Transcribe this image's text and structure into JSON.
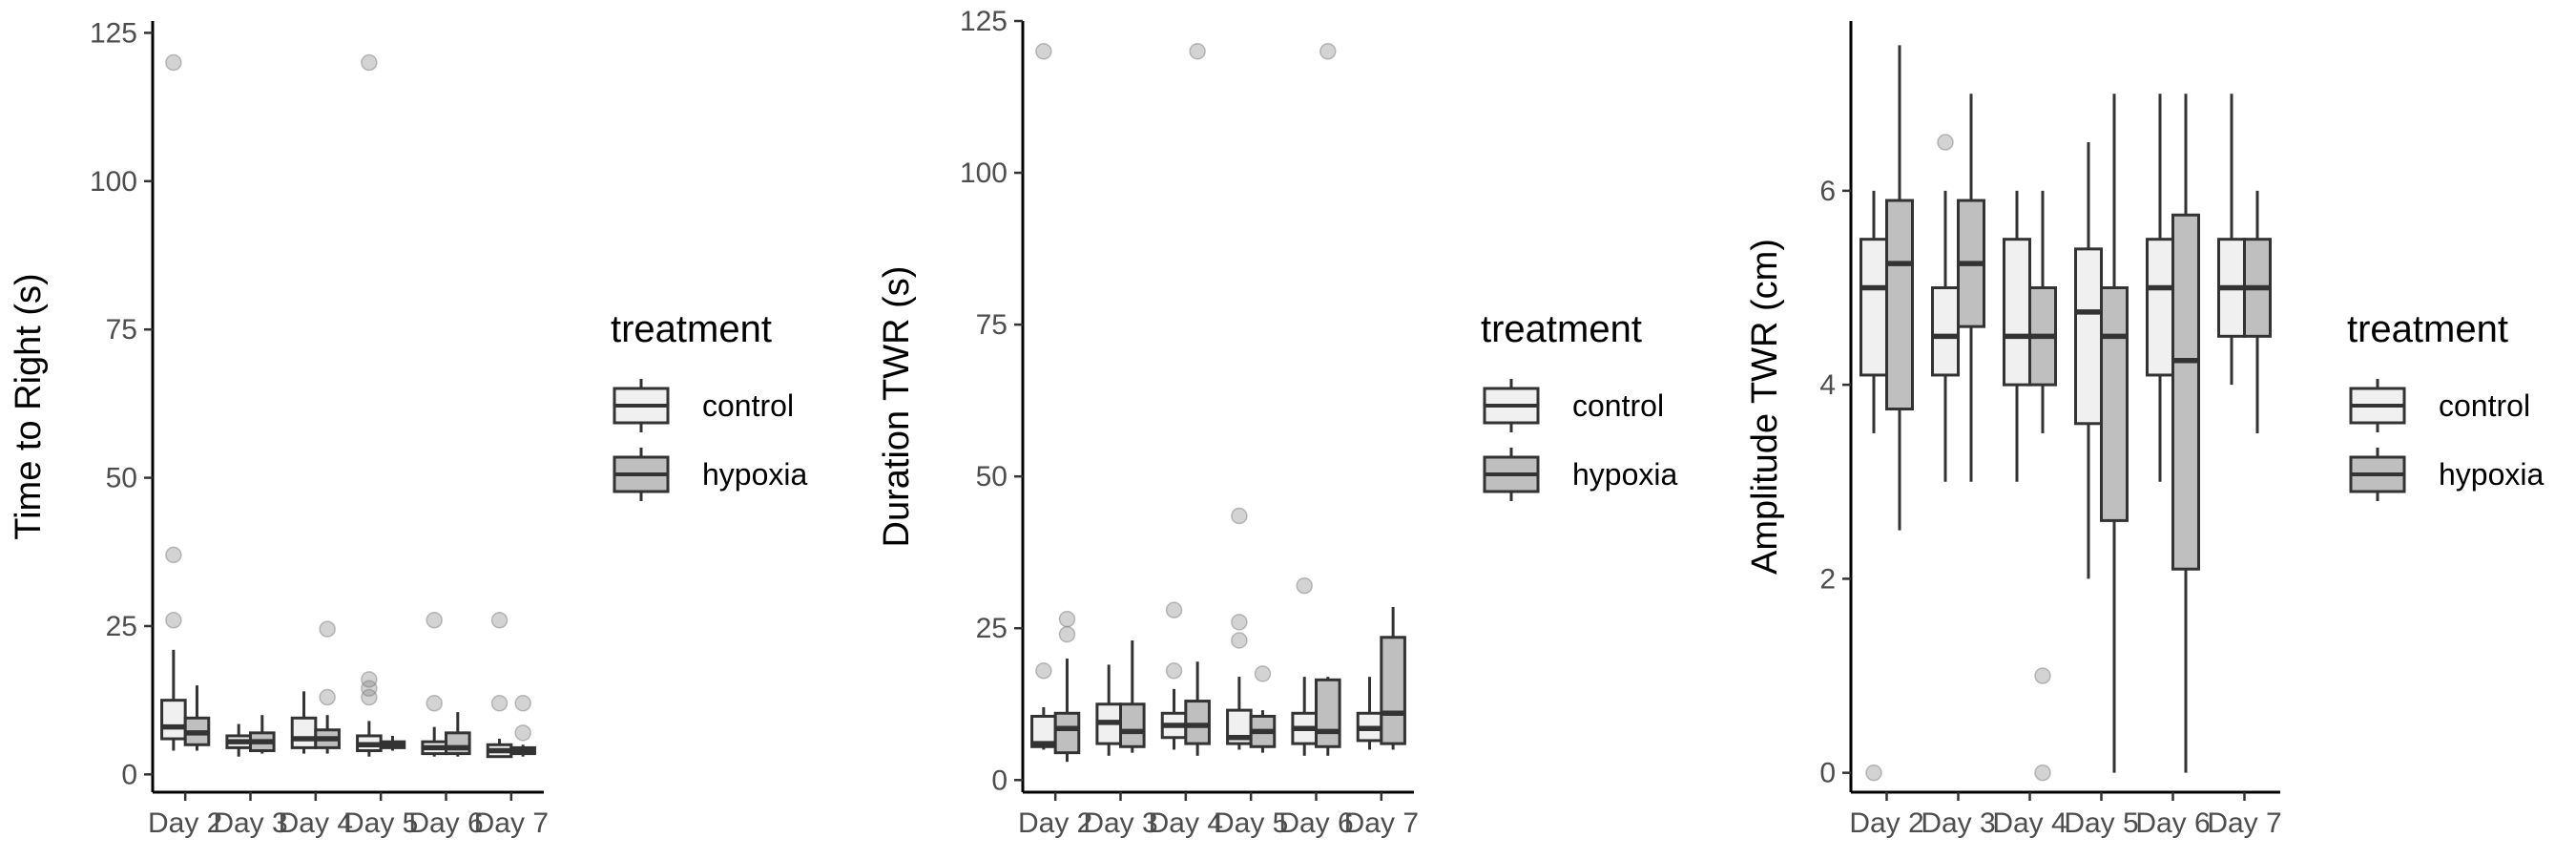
{
  "colors": {
    "control": "#f0f0f0",
    "hypoxia": "#bfbfbf",
    "stroke": "#333333",
    "outlier": "#9a9a9a"
  },
  "legend": {
    "title": "treatment",
    "labels": [
      "control",
      "hypoxia"
    ]
  },
  "chart_data": [
    {
      "type": "boxplot",
      "ylabel": "Time to Right (s)",
      "ylim": [
        -3,
        127
      ],
      "yticks": [
        0,
        25,
        50,
        75,
        100,
        125
      ],
      "categories": [
        "Day 2",
        "Day 3",
        "Day 4",
        "Day 5",
        "Day 6",
        "Day 7"
      ],
      "series": [
        {
          "name": "control",
          "boxes": [
            {
              "whisker_low": 4,
              "q1": 6,
              "median": 8,
              "q3": 12.5,
              "whisker_high": 21,
              "outliers": [
                26,
                37,
                120
              ]
            },
            {
              "whisker_low": 3,
              "q1": 4.5,
              "median": 5.5,
              "q3": 6.5,
              "whisker_high": 8.5,
              "outliers": []
            },
            {
              "whisker_low": 3.5,
              "q1": 4.5,
              "median": 6,
              "q3": 9.5,
              "whisker_high": 14,
              "outliers": []
            },
            {
              "whisker_low": 3,
              "q1": 4,
              "median": 5,
              "q3": 6.5,
              "whisker_high": 9,
              "outliers": [
                13,
                14.5,
                16,
                120
              ]
            },
            {
              "whisker_low": 3,
              "q1": 3.5,
              "median": 4.5,
              "q3": 5.5,
              "whisker_high": 8,
              "outliers": [
                12,
                26
              ]
            },
            {
              "whisker_low": 3,
              "q1": 3,
              "median": 4,
              "q3": 5,
              "whisker_high": 6,
              "outliers": [
                12,
                26
              ]
            }
          ]
        },
        {
          "name": "hypoxia",
          "boxes": [
            {
              "whisker_low": 4,
              "q1": 5,
              "median": 7,
              "q3": 9.5,
              "whisker_high": 15,
              "outliers": []
            },
            {
              "whisker_low": 3.5,
              "q1": 4,
              "median": 5.5,
              "q3": 7,
              "whisker_high": 10,
              "outliers": []
            },
            {
              "whisker_low": 3.5,
              "q1": 4.5,
              "median": 6,
              "q3": 7.5,
              "whisker_high": 10,
              "outliers": [
                13,
                24.5
              ]
            },
            {
              "whisker_low": 4,
              "q1": 4.5,
              "median": 5,
              "q3": 5.5,
              "whisker_high": 6.5,
              "outliers": []
            },
            {
              "whisker_low": 3,
              "q1": 3.5,
              "median": 4.5,
              "q3": 7,
              "whisker_high": 10.5,
              "outliers": []
            },
            {
              "whisker_low": 3,
              "q1": 3.5,
              "median": 4,
              "q3": 4.5,
              "whisker_high": 5,
              "outliers": [
                7,
                12
              ]
            }
          ]
        }
      ]
    },
    {
      "type": "boxplot",
      "ylabel": "Duration TWR (s)",
      "ylim": [
        -2,
        125
      ],
      "yticks": [
        0,
        25,
        50,
        75,
        100,
        125
      ],
      "categories": [
        "Day 2",
        "Day 3",
        "Day 4",
        "Day 5",
        "Day 6",
        "Day 7"
      ],
      "series": [
        {
          "name": "control",
          "boxes": [
            {
              "whisker_low": 5,
              "q1": 5.5,
              "median": 6,
              "q3": 10.5,
              "whisker_high": 12,
              "outliers": [
                18,
                120
              ]
            },
            {
              "whisker_low": 4,
              "q1": 6,
              "median": 9.5,
              "q3": 12.5,
              "whisker_high": 19,
              "outliers": []
            },
            {
              "whisker_low": 5,
              "q1": 7,
              "median": 9,
              "q3": 11,
              "whisker_high": 15,
              "outliers": [
                18,
                28
              ]
            },
            {
              "whisker_low": 5,
              "q1": 6,
              "median": 7,
              "q3": 11.5,
              "whisker_high": 17,
              "outliers": [
                23,
                26,
                43.5
              ]
            },
            {
              "whisker_low": 4,
              "q1": 6,
              "median": 8.5,
              "q3": 11,
              "whisker_high": 17,
              "outliers": [
                32
              ]
            },
            {
              "whisker_low": 5,
              "q1": 6.5,
              "median": 8.5,
              "q3": 11,
              "whisker_high": 17,
              "outliers": []
            }
          ]
        },
        {
          "name": "hypoxia",
          "boxes": [
            {
              "whisker_low": 3,
              "q1": 4.5,
              "median": 8.5,
              "q3": 11,
              "whisker_high": 20,
              "outliers": [
                24,
                26.5
              ]
            },
            {
              "whisker_low": 4.5,
              "q1": 5.5,
              "median": 8,
              "q3": 12.5,
              "whisker_high": 23,
              "outliers": []
            },
            {
              "whisker_low": 4,
              "q1": 6,
              "median": 9,
              "q3": 13,
              "whisker_high": 19.5,
              "outliers": [
                120
              ]
            },
            {
              "whisker_low": 4.5,
              "q1": 5.5,
              "median": 8,
              "q3": 10.5,
              "whisker_high": 11.5,
              "outliers": [
                17.5
              ]
            },
            {
              "whisker_low": 4,
              "q1": 5.5,
              "median": 8,
              "q3": 16.5,
              "whisker_high": 17,
              "outliers": [
                120
              ]
            },
            {
              "whisker_low": 5,
              "q1": 6,
              "median": 11,
              "q3": 23.5,
              "whisker_high": 28.5,
              "outliers": []
            }
          ]
        }
      ]
    },
    {
      "type": "boxplot",
      "ylabel": "Amplitude TWR (cm)",
      "ylim": [
        -0.2,
        7.75
      ],
      "yticks": [
        0,
        2,
        4,
        6
      ],
      "categories": [
        "Day 2",
        "Day 3",
        "Day 4",
        "Day 5",
        "Day 6",
        "Day 7"
      ],
      "series": [
        {
          "name": "control",
          "boxes": [
            {
              "whisker_low": 3.5,
              "q1": 4.1,
              "median": 5,
              "q3": 5.5,
              "whisker_high": 6,
              "outliers": [
                0
              ]
            },
            {
              "whisker_low": 3,
              "q1": 4.1,
              "median": 4.5,
              "q3": 5,
              "whisker_high": 6,
              "outliers": [
                6.5
              ]
            },
            {
              "whisker_low": 3,
              "q1": 4,
              "median": 4.5,
              "q3": 5.5,
              "whisker_high": 6,
              "outliers": []
            },
            {
              "whisker_low": 2,
              "q1": 3.6,
              "median": 4.75,
              "q3": 5.4,
              "whisker_high": 6.5,
              "outliers": []
            },
            {
              "whisker_low": 3,
              "q1": 4.1,
              "median": 5,
              "q3": 5.5,
              "whisker_high": 7,
              "outliers": []
            },
            {
              "whisker_low": 4,
              "q1": 4.5,
              "median": 5,
              "q3": 5.5,
              "whisker_high": 7,
              "outliers": []
            }
          ]
        },
        {
          "name": "hypoxia",
          "boxes": [
            {
              "whisker_low": 2.5,
              "q1": 3.75,
              "median": 5.25,
              "q3": 5.9,
              "whisker_high": 7.5,
              "outliers": []
            },
            {
              "whisker_low": 3,
              "q1": 4.6,
              "median": 5.25,
              "q3": 5.9,
              "whisker_high": 7,
              "outliers": []
            },
            {
              "whisker_low": 3.5,
              "q1": 4,
              "median": 4.5,
              "q3": 5,
              "whisker_high": 6,
              "outliers": [
                0,
                1
              ]
            },
            {
              "whisker_low": 0,
              "q1": 2.6,
              "median": 4.5,
              "q3": 5,
              "whisker_high": 7,
              "outliers": []
            },
            {
              "whisker_low": 0,
              "q1": 2.1,
              "median": 4.25,
              "q3": 5.75,
              "whisker_high": 7,
              "outliers": []
            },
            {
              "whisker_low": 3.5,
              "q1": 4.5,
              "median": 5,
              "q3": 5.5,
              "whisker_high": 6,
              "outliers": []
            }
          ]
        }
      ]
    }
  ]
}
